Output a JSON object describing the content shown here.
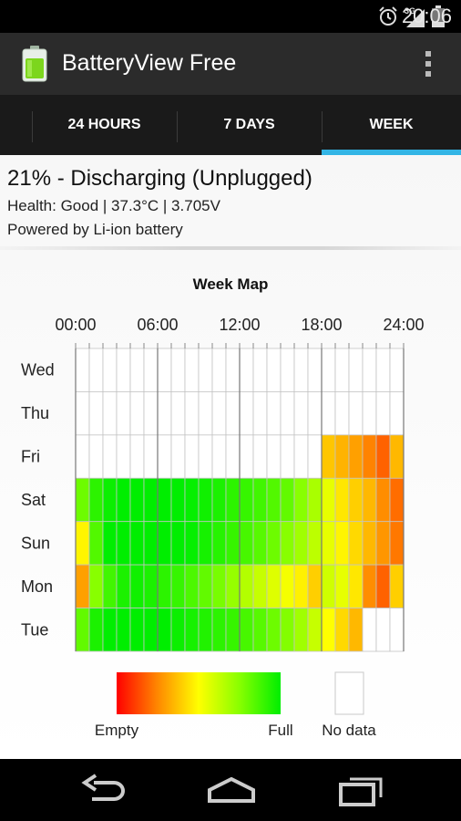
{
  "status_bar": {
    "time": "20:06",
    "network": "3G",
    "icons": [
      "alarm-icon",
      "signal-icon",
      "battery-icon"
    ]
  },
  "action_bar": {
    "title": "BatteryView Free",
    "app_icon": "battery-app-icon",
    "overflow_icon": "overflow-menu-icon"
  },
  "tabs": [
    {
      "label": "24 HOURS",
      "selected": false
    },
    {
      "label": "7 DAYS",
      "selected": false
    },
    {
      "label": "WEEK",
      "selected": true
    }
  ],
  "battery_info": {
    "status": "21% - Discharging (Unplugged)",
    "details": "Health: Good | 37.3°C | 3.705V",
    "powered_by": "Powered by Li-ion battery"
  },
  "legend": {
    "empty_label": "Empty",
    "full_label": "Full",
    "nodata_label": "No data",
    "gradient_colors": [
      "#ff0000",
      "#ff8800",
      "#ffff00",
      "#88ff00",
      "#00ee00"
    ]
  },
  "accent_color": "#33b5e5",
  "chart_data": {
    "type": "heatmap",
    "title": "Week Map",
    "x_ticks": [
      "00:00",
      "06:00",
      "12:00",
      "18:00",
      "24:00"
    ],
    "rows": [
      "Wed",
      "Thu",
      "Fri",
      "Sat",
      "Sun",
      "Mon",
      "Tue"
    ],
    "columns": 24,
    "value_meaning": "battery level from 0 (Empty) to 1 (Full); null = No data",
    "values": [
      [
        null,
        null,
        null,
        null,
        null,
        null,
        null,
        null,
        null,
        null,
        null,
        null,
        null,
        null,
        null,
        null,
        null,
        null,
        null,
        null,
        null,
        null,
        null,
        null
      ],
      [
        null,
        null,
        null,
        null,
        null,
        null,
        null,
        null,
        null,
        null,
        null,
        null,
        null,
        null,
        null,
        null,
        null,
        null,
        null,
        null,
        null,
        null,
        null,
        null
      ],
      [
        null,
        null,
        null,
        null,
        null,
        null,
        null,
        null,
        null,
        null,
        null,
        null,
        null,
        null,
        null,
        null,
        null,
        null,
        0.38,
        0.34,
        0.3,
        0.24,
        0.18,
        0.35
      ],
      [
        0.8,
        0.92,
        0.98,
        1.0,
        1.0,
        1.0,
        1.0,
        1.0,
        0.99,
        0.97,
        0.95,
        0.92,
        0.9,
        0.88,
        0.85,
        0.82,
        0.75,
        0.68,
        0.55,
        0.45,
        0.4,
        0.35,
        0.26,
        0.2
      ],
      [
        0.48,
        0.85,
        1.0,
        1.0,
        1.0,
        1.0,
        1.0,
        1.0,
        0.99,
        0.96,
        0.93,
        0.9,
        0.87,
        0.84,
        0.8,
        0.75,
        0.7,
        0.64,
        0.55,
        0.48,
        0.42,
        0.35,
        0.28,
        0.22
      ],
      [
        0.3,
        0.75,
        0.88,
        0.95,
        0.97,
        0.95,
        0.92,
        0.9,
        0.86,
        0.82,
        0.78,
        0.72,
        0.66,
        0.62,
        0.57,
        0.52,
        0.47,
        0.4,
        0.6,
        0.55,
        0.45,
        0.26,
        0.18,
        0.4
      ],
      [
        0.82,
        0.95,
        1.0,
        1.0,
        1.0,
        1.0,
        1.0,
        0.98,
        0.96,
        0.94,
        0.92,
        0.9,
        0.87,
        0.84,
        0.8,
        0.76,
        0.7,
        0.62,
        0.5,
        0.42,
        0.35,
        null,
        null,
        null
      ]
    ]
  }
}
